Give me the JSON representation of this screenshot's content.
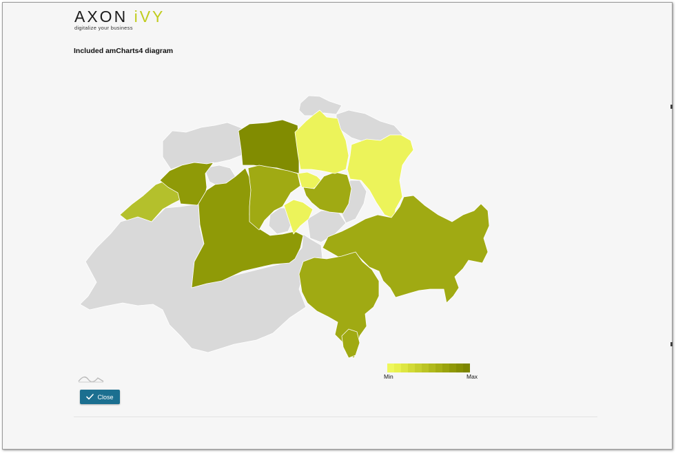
{
  "header": {
    "logo": {
      "word_axon": "AXON ",
      "word_ivy": "iVY",
      "tagline": "digitalize your business"
    }
  },
  "main": {
    "title": "Included amCharts4 diagram",
    "map": {
      "regions": {
        "basel_land": {
          "level": "none"
        },
        "schaffhausen": {
          "level": "none"
        },
        "neuchatel": {
          "level": "low"
        },
        "jura": {
          "level": "high"
        },
        "solothurn": {
          "level": "none"
        },
        "bern": {
          "level": "high"
        },
        "aargau": {
          "level": "max"
        },
        "zurich": {
          "level": "min"
        },
        "thurgau": {
          "level": "none"
        },
        "st_gallen": {
          "level": "min"
        },
        "luzern": {
          "level": "mid"
        },
        "zug": {
          "level": "min"
        },
        "schwyz": {
          "level": "mid"
        },
        "nidwalden": {
          "level": "min"
        },
        "glarus": {
          "level": "none"
        },
        "graubuenden": {
          "level": "mid"
        },
        "ticino": {
          "level": "mid"
        },
        "vaud": {
          "level": "none"
        },
        "fribourg": {
          "level": "none"
        },
        "valais": {
          "level": "none"
        },
        "geneva": {
          "level": "none"
        }
      },
      "colors": {
        "none": "#d9d9d9",
        "min": "#ecf35a",
        "low": "#b4c02c",
        "mid": "#a0aa13",
        "high": "#8f9a07",
        "max": "#818c01"
      }
    },
    "legend": {
      "min_label": "Min",
      "max_label": "Max",
      "gradient": [
        "#eef75b",
        "#e8f04d",
        "#dde642",
        "#d2da36",
        "#c6cf2d",
        "#bbc424",
        "#b0b91c",
        "#a5ae14",
        "#9aa30d",
        "#8f9807",
        "#858e02",
        "#7c8500"
      ]
    }
  },
  "footer": {
    "close_button": {
      "label": "Close",
      "icon": "check-icon"
    }
  }
}
